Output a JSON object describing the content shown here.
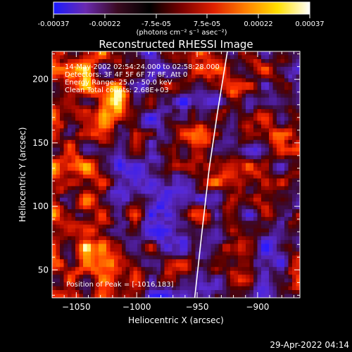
{
  "colorbar": {
    "ticks": [
      "-0.00037",
      "-0.00022",
      "-7.5e-05",
      "7.5e-05",
      "0.00022",
      "0.00037"
    ],
    "units_label": "(photons cm⁻² s⁻¹ asec⁻²)",
    "colors": [
      "#1a1aff",
      "#6a2ab0",
      "#3a0a20",
      "#000000",
      "#7a0000",
      "#e02000",
      "#ff8000",
      "#ffe000",
      "#ffffff"
    ]
  },
  "chart_data": {
    "type": "heatmap",
    "title": "Reconstructed RHESSI Image",
    "xlabel": "Heliocentric X (arcsec)",
    "ylabel": "Heliocentric Y (arcsec)",
    "xlim": [
      -1070,
      -865
    ],
    "ylim": [
      28,
      222
    ],
    "x_ticks": [
      -1050,
      -1000,
      -950,
      -900
    ],
    "y_ticks": [
      50,
      100,
      150,
      200
    ],
    "x_tick_labels": [
      "−1050",
      "−1000",
      "−950",
      "−900"
    ],
    "y_tick_labels": [
      "50",
      "100",
      "150",
      "200"
    ],
    "annotations": [
      "14-May-2002 02:54:24.000 to 02:58:28.000",
      "Detectors: 3F 4F 5F 6F 7F 8F, Att 0",
      "Energy Range: 25.0 - 50.0 keV",
      "Clean      Total counts: 2.68E+03"
    ],
    "peak_label": "Position of Peak = [-1016,183]",
    "peak": [
      -1016,
      183
    ],
    "limb": [
      [
        -952,
        28
      ],
      [
        -946,
        80
      ],
      [
        -940,
        130
      ],
      [
        -933,
        175
      ],
      [
        -925,
        222
      ]
    ]
  },
  "timestamp": "29-Apr-2022 04:14"
}
